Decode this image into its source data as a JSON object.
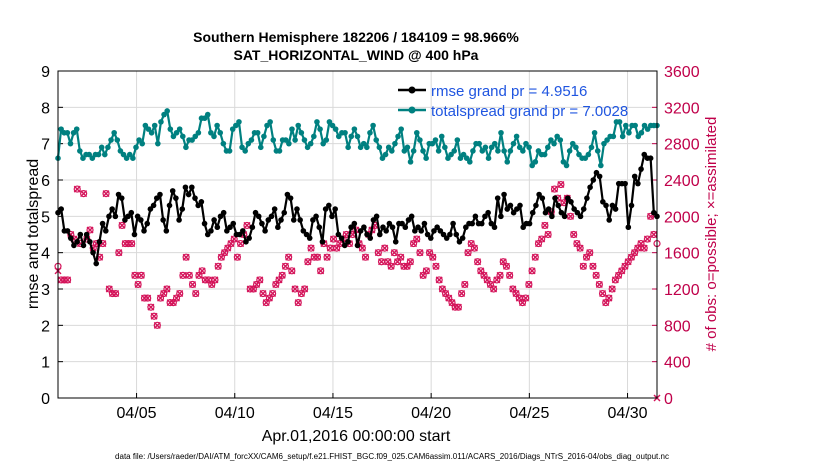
{
  "chart_data": {
    "type": "line",
    "title": "Southern Hemisphere 182206 / 184109 = 98.966%",
    "subtitle": "SAT_HORIZONTAL_WIND @ 400 hPa",
    "xlabel": "Apr.01,2016 00:00:00 start",
    "ylabel_left": "rmse and totalspread",
    "ylabel_right": "# of obs: o=possible; ×=assimilated",
    "footer": "data file: /Users/raeder/DAI/ATM_forcXX/CAM6_setup/f.e21.FHIST_BGC.f09_025.CAM6assim.011/ACARS_2016/Diags_NTrS_2016-04/obs_diag_output.nc",
    "x_range": [
      1,
      31.5
    ],
    "x_ticks": [
      {
        "value": 5,
        "label": "04/05"
      },
      {
        "value": 10,
        "label": "04/10"
      },
      {
        "value": 15,
        "label": "04/15"
      },
      {
        "value": 20,
        "label": "04/20"
      },
      {
        "value": 25,
        "label": "04/25"
      },
      {
        "value": 30,
        "label": "04/30"
      }
    ],
    "ylim_left": [
      0,
      9
    ],
    "yticks_left": [
      "0",
      "1",
      "2",
      "3",
      "4",
      "5",
      "6",
      "7",
      "8",
      "9"
    ],
    "ylim_right": [
      0,
      3600
    ],
    "yticks_right": [
      "0",
      "400",
      "800",
      "1200",
      "1600",
      "2000",
      "2400",
      "2800",
      "3200",
      "3600"
    ],
    "legend": [
      {
        "name": "rmse grand pr = 4.9516",
        "color": "#000000"
      },
      {
        "name": "totalspread grand pr = 7.0028",
        "color": "#008080"
      }
    ],
    "colors": {
      "rmse": "#000000",
      "spread": "#008080",
      "obs": "#d4145a"
    },
    "series": [
      {
        "name": "rmse",
        "values": [
          5.1,
          5.2,
          4.6,
          4.6,
          4.4,
          4.2,
          4.3,
          4.5,
          4.2,
          4.5,
          4.3,
          4.0,
          3.7,
          4.3,
          4.8,
          4.6,
          5.0,
          5.2,
          5.0,
          5.6,
          5.5,
          4.9,
          5.0,
          5.1,
          4.5,
          5.0,
          4.9,
          4.6,
          4.8,
          5.2,
          5.3,
          5.5,
          5.6,
          4.9,
          4.6,
          5.3,
          5.7,
          5.5,
          4.9,
          5.2,
          5.8,
          5.6,
          5.8,
          5.5,
          5.3,
          5.4,
          4.8,
          4.5,
          4.6,
          4.9,
          4.7,
          5.0,
          5.1,
          4.6,
          4.7,
          4.8,
          4.5,
          4.5,
          4.6,
          4.3,
          4.4,
          4.7,
          5.1,
          5.0,
          4.8,
          4.6,
          4.9,
          5.0,
          5.2,
          4.7,
          4.9,
          5.1,
          5.6,
          5.5,
          4.9,
          5.2,
          4.9,
          4.6,
          4.5,
          4.4,
          4.9,
          5.0,
          4.7,
          4.3,
          5.2,
          5.3,
          5.0,
          5.2,
          4.5,
          4.4,
          4.2,
          4.3,
          4.7,
          4.8,
          4.2,
          4.6,
          4.7,
          4.5,
          4.4,
          4.9,
          5.0,
          4.5,
          4.7,
          4.6,
          4.8,
          4.7,
          4.3,
          4.8,
          4.8,
          4.7,
          4.9,
          5.0,
          4.6,
          4.7,
          4.6,
          4.8,
          4.5,
          4.4,
          4.6,
          4.7,
          4.6,
          4.5,
          4.4,
          4.5,
          4.8,
          4.5,
          4.3,
          4.4,
          4.7,
          4.8,
          4.8,
          5.0,
          4.8,
          4.8,
          5.0,
          5.1,
          4.8,
          4.7,
          5.5,
          5.0,
          5.6,
          5.2,
          5.3,
          5.1,
          5.2,
          5.3,
          4.7,
          4.8,
          4.8,
          5.1,
          5.3,
          5.6,
          5.5,
          5.1,
          5.2,
          5.0,
          5.5,
          5.3,
          5.1,
          5.0,
          5.5,
          5.4,
          5.2,
          5.1,
          5.0,
          5.2,
          5.5,
          5.8,
          6.0,
          6.2,
          6.1,
          5.4,
          5.3,
          4.9,
          5.3,
          5.2,
          5.9,
          5.9,
          5.9,
          4.7,
          5.3,
          6.1,
          5.9,
          6.3,
          6.7,
          6.6,
          6.6,
          5.1,
          5.0
        ]
      },
      {
        "name": "totalspread",
        "values": [
          6.6,
          7.4,
          7.3,
          7.3,
          7.0,
          7.3,
          7.4,
          6.8,
          6.6,
          6.7,
          6.7,
          6.6,
          6.7,
          6.7,
          6.9,
          6.7,
          6.9,
          7.1,
          7.3,
          7.1,
          6.8,
          6.7,
          6.6,
          6.7,
          6.6,
          6.9,
          7.1,
          7.0,
          7.5,
          7.4,
          7.3,
          7.5,
          7.0,
          7.6,
          7.8,
          7.9,
          7.4,
          7.2,
          7.3,
          7.4,
          7.2,
          6.9,
          7.1,
          7.1,
          7.2,
          7.3,
          7.7,
          7.7,
          7.8,
          7.3,
          7.2,
          7.5,
          7.3,
          7.0,
          6.8,
          6.8,
          7.4,
          7.5,
          7.6,
          6.9,
          6.8,
          7.0,
          7.1,
          7.3,
          7.3,
          6.9,
          7.2,
          7.5,
          7.6,
          7.1,
          6.8,
          6.8,
          7.1,
          7.1,
          7.0,
          7.4,
          7.1,
          7.5,
          7.3,
          7.1,
          6.9,
          7.0,
          7.2,
          7.6,
          7.4,
          7.0,
          7.1,
          7.6,
          7.5,
          7.4,
          7.2,
          7.3,
          7.3,
          6.9,
          7.2,
          7.4,
          7.2,
          6.9,
          7.0,
          6.9,
          7.3,
          7.5,
          7.1,
          6.9,
          6.6,
          6.7,
          6.9,
          6.8,
          7.0,
          7.2,
          7.4,
          6.8,
          6.9,
          6.5,
          6.8,
          7.3,
          7.1,
          6.8,
          6.6,
          7.0,
          7.0,
          7.1,
          6.8,
          7.2,
          6.9,
          6.6,
          6.7,
          6.8,
          7.1,
          6.6,
          6.7,
          6.6,
          6.5,
          6.8,
          7.0,
          7.0,
          6.8,
          6.9,
          6.6,
          6.9,
          7.0,
          6.8,
          7.3,
          6.8,
          6.5,
          6.8,
          7.0,
          7.2,
          6.9,
          6.8,
          7.0,
          6.9,
          6.4,
          6.5,
          6.8,
          6.7,
          6.7,
          6.9,
          7.1,
          7.0,
          7.2,
          7.1,
          6.5,
          6.4,
          6.8,
          7.0,
          6.9,
          6.7,
          6.6,
          6.6,
          6.7,
          6.9,
          7.3,
          6.8,
          6.4,
          7.0,
          7.1,
          7.2,
          7.2,
          7.6,
          7.6,
          7.2,
          7.5,
          7.3,
          7.5,
          7.5,
          7.2,
          7.3,
          7.5,
          7.4,
          7.5,
          7.5,
          7.5
        ]
      }
    ],
    "obs_possible": [
      1450,
      1300,
      1300,
      1300,
      1800,
      1750,
      2300,
      1700,
      2250,
      1750,
      1850,
      1650,
      1700,
      1550,
      1700,
      2250,
      1200,
      1150,
      1150,
      1600,
      1900,
      1700,
      1700,
      1700,
      1350,
      1250,
      1350,
      1100,
      1100,
      1000,
      900,
      800,
      1100,
      1150,
      1200,
      1050,
      1050,
      1100,
      1150,
      1350,
      1550,
      1350,
      1250,
      1150,
      1350,
      1400,
      1300,
      1300,
      1250,
      1300,
      1450,
      1550,
      1600,
      1650,
      1700,
      1750,
      1550,
      1700,
      1800,
      1900,
      1200,
      1200,
      1250,
      1300,
      1150,
      1050,
      1100,
      1150,
      1250,
      1300,
      1350,
      1450,
      1550,
      1400,
      1200,
      1050,
      1150,
      1200,
      1500,
      1650,
      1550,
      1550,
      1400,
      1700,
      1550,
      1650,
      1750,
      1650,
      1700,
      1750,
      1800,
      1700,
      1800,
      1850,
      1700,
      1650,
      1550,
      1800,
      1850,
      1900,
      1600,
      1500,
      1650,
      1500,
      1450,
      1600,
      1500,
      1550,
      1450,
      1450,
      1500,
      1700,
      1750,
      1600,
      1350,
      1400,
      1600,
      1550,
      1450,
      1300,
      1200,
      1150,
      1100,
      1050,
      1000,
      1000,
      1150,
      1250,
      1600,
      1700,
      1650,
      1500,
      1400,
      1350,
      1300,
      1250,
      1200,
      1300,
      1350,
      1500,
      1450,
      1350,
      1200,
      1150,
      1100,
      1050,
      1100,
      1250,
      1400,
      1550,
      1700,
      1750,
      1900,
      1800,
      2050,
      2300,
      2200,
      2350,
      2150,
      2200,
      2000,
      1800,
      1700,
      1650,
      1450,
      1550,
      1600,
      1450,
      1350,
      1250,
      1150,
      1050,
      1100,
      1200,
      1300,
      1350,
      1400,
      1450,
      1500,
      1550,
      1600,
      1650,
      1700,
      1650,
      1750,
      2000,
      1800,
      1700
    ],
    "obs_assimilated": [
      1400,
      1300,
      1300,
      1300,
      1800,
      1750,
      2300,
      1700,
      2250,
      1750,
      1850,
      1650,
      1700,
      1550,
      1700,
      2250,
      1200,
      1150,
      1150,
      1600,
      1900,
      1700,
      1700,
      1700,
      1350,
      1250,
      1350,
      1100,
      1100,
      1000,
      900,
      800,
      1100,
      1150,
      1200,
      1050,
      1050,
      1100,
      1150,
      1350,
      1550,
      1350,
      1250,
      1150,
      1350,
      1400,
      1300,
      1300,
      1250,
      1300,
      1450,
      1550,
      1600,
      1650,
      1700,
      1750,
      1550,
      1700,
      1800,
      1900,
      1200,
      1200,
      1250,
      1300,
      1150,
      1050,
      1100,
      1150,
      1250,
      1300,
      1350,
      1450,
      1550,
      1400,
      1200,
      1050,
      1150,
      1200,
      1500,
      1650,
      1550,
      1550,
      1400,
      1700,
      1550,
      1650,
      1750,
      1650,
      1700,
      1750,
      1800,
      1700,
      1800,
      1850,
      1700,
      1650,
      1550,
      1800,
      1850,
      1900,
      1600,
      1500,
      1650,
      1500,
      1450,
      1600,
      1500,
      1550,
      1450,
      1450,
      1500,
      1700,
      1750,
      1600,
      1350,
      1400,
      1600,
      1550,
      1450,
      1300,
      1200,
      1150,
      1100,
      1050,
      1000,
      1000,
      1150,
      1250,
      1600,
      1700,
      1650,
      1500,
      1400,
      1350,
      1300,
      1250,
      1200,
      1300,
      1350,
      1500,
      1450,
      1350,
      1200,
      1150,
      1100,
      1050,
      1100,
      1250,
      1400,
      1550,
      1700,
      1750,
      1900,
      1800,
      2050,
      2300,
      2200,
      2350,
      2150,
      2200,
      2000,
      1800,
      1700,
      1650,
      1450,
      1550,
      1600,
      1450,
      1350,
      1250,
      1150,
      1050,
      1100,
      1200,
      1300,
      1350,
      1400,
      1450,
      1500,
      1550,
      1600,
      1650,
      1700,
      1650,
      1750,
      2000,
      1800,
      0
    ]
  }
}
